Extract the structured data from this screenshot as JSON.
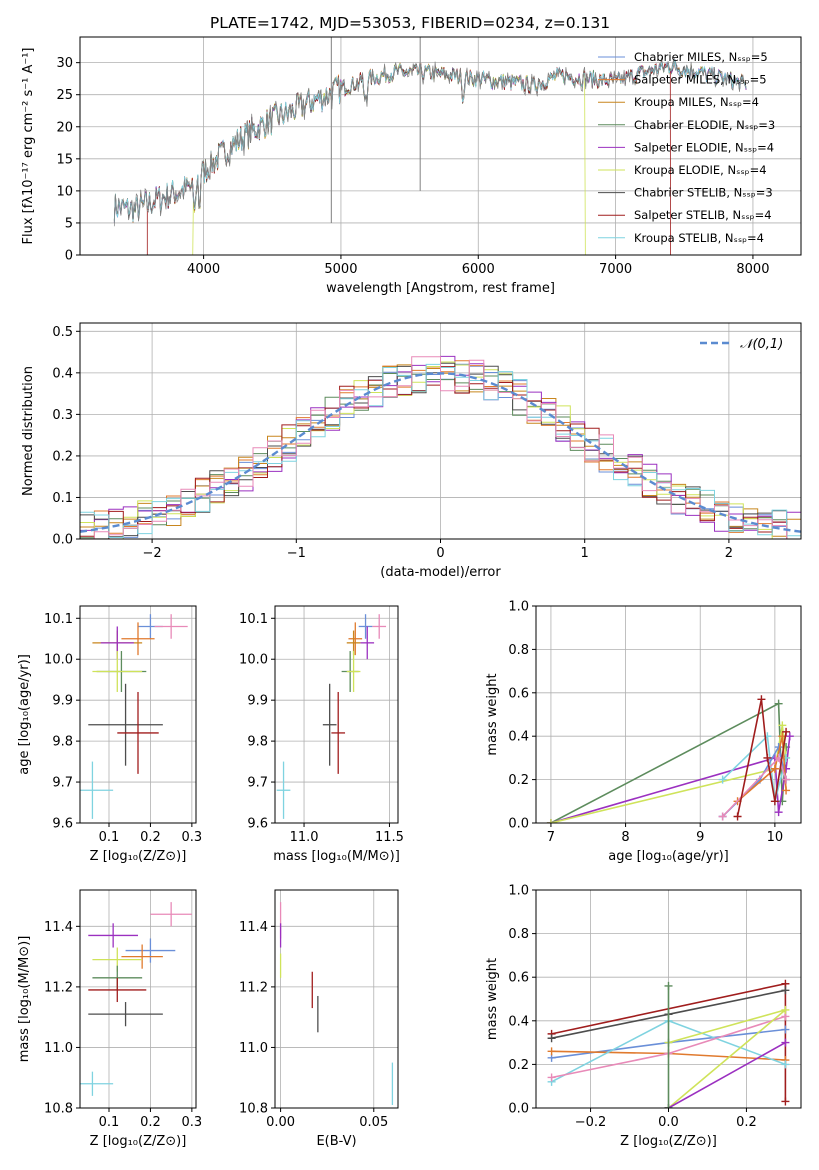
{
  "colors": {
    "Chabrier MILES": "#6a8fd8",
    "Salpeter MILES": "#e07a2e",
    "Kroupa MILES": "#c8861e",
    "Chabrier ELODIE": "#5d8c5d",
    "Salpeter ELODIE": "#9b30c0",
    "Kroupa ELODIE": "#cfe35a",
    "Chabrier STELIB": "#4d4d4d",
    "Salpeter STELIB": "#a01d1d",
    "Kroupa STELIB": "#7fd3e0",
    "pink": "#e88ab8",
    "observed": "#808080"
  },
  "chart_data": [
    {
      "id": "spectrum",
      "type": "line",
      "title": "PLATE=1742, MJD=53053, FIBERID=0234, z=0.131",
      "xlabel": "wavelength [Angstrom, rest frame]",
      "ylabel": "Flux [fλ10⁻¹⁷ erg cm⁻² s⁻¹ A⁻¹]",
      "xlim": [
        3100,
        8350
      ],
      "ylim": [
        0,
        34
      ],
      "xticks": [
        4000,
        5000,
        6000,
        7000,
        8000
      ],
      "yticks": [
        0,
        5,
        10,
        15,
        20,
        25,
        30
      ],
      "legend_position": "top-right",
      "legend": [
        "Chabrier MILES, Nₛₛₚ=5",
        "Salpeter MILES, Nₛₛₚ=5",
        "Kroupa MILES, Nₛₛₚ=4",
        "Chabrier ELODIE, Nₛₛₚ=3",
        "Salpeter ELODIE, Nₛₛₚ=4",
        "Kroupa ELODIE, Nₛₛₚ=4",
        "Chabrier STELIB, Nₛₛₚ=3",
        "Salpeter STELIB, Nₛₛₚ=4",
        "Kroupa STELIB, Nₛₛₚ=4"
      ],
      "continuum": [
        [
          3350,
          7.5
        ],
        [
          3500,
          7.0
        ],
        [
          3700,
          9.0
        ],
        [
          3900,
          10.5
        ],
        [
          4000,
          13.0
        ],
        [
          4200,
          17.0
        ],
        [
          4400,
          20.0
        ],
        [
          4600,
          22.0
        ],
        [
          4800,
          24.0
        ],
        [
          5000,
          26.0
        ],
        [
          5200,
          27.5
        ],
        [
          5400,
          28.5
        ],
        [
          5600,
          28.5
        ],
        [
          5800,
          28.0
        ],
        [
          6000,
          27.5
        ],
        [
          6200,
          27.0
        ],
        [
          6400,
          26.5
        ],
        [
          6600,
          28.0
        ],
        [
          6800,
          27.5
        ],
        [
          7000,
          27.0
        ],
        [
          7200,
          28.5
        ],
        [
          7400,
          29.5
        ],
        [
          7600,
          28.5
        ],
        [
          7800,
          27.5
        ],
        [
          7950,
          26.5
        ]
      ],
      "models_end": [
        3600,
        3920,
        6780,
        7400
      ]
    },
    {
      "id": "residuals",
      "type": "histogram",
      "xlabel": "(data-model)/error",
      "ylabel": "Normed distribution",
      "xlim": [
        -2.5,
        2.5
      ],
      "ylim": [
        0,
        0.52
      ],
      "xticks": [
        -2,
        -1,
        0,
        1,
        2
      ],
      "yticks": [
        0.0,
        0.1,
        0.2,
        0.3,
        0.4,
        0.5
      ],
      "legend_position": "top-right",
      "legend": [
        "𝒩(0,1)"
      ],
      "bin_width": 0.1
    },
    {
      "id": "age-vs-Z",
      "type": "scatter",
      "xlabel": "Z [log₁₀(Z/Z⊙)]",
      "ylabel": "age  [log₁₀(age/yr)]",
      "xlim": [
        0.03,
        0.31
      ],
      "ylim": [
        9.6,
        10.13
      ],
      "xticks": [
        0.1,
        0.2,
        0.3
      ],
      "yticks": [
        9.6,
        9.7,
        9.8,
        9.9,
        10.0,
        10.1
      ],
      "points": [
        {
          "x": 0.2,
          "y": 10.08,
          "xe": 0.03,
          "ye": 0.03,
          "c": "Chabrier MILES"
        },
        {
          "x": 0.17,
          "y": 10.05,
          "xe": 0.04,
          "ye": 0.04,
          "c": "Salpeter MILES"
        },
        {
          "x": 0.12,
          "y": 10.04,
          "xe": 0.06,
          "ye": 0.03,
          "c": "Kroupa MILES"
        },
        {
          "x": 0.13,
          "y": 9.97,
          "xe": 0.06,
          "ye": 0.05,
          "c": "Chabrier ELODIE"
        },
        {
          "x": 0.12,
          "y": 10.04,
          "xe": 0.04,
          "ye": 0.04,
          "c": "Salpeter ELODIE"
        },
        {
          "x": 0.12,
          "y": 9.97,
          "xe": 0.06,
          "ye": 0.05,
          "c": "Kroupa ELODIE"
        },
        {
          "x": 0.14,
          "y": 9.84,
          "xe": 0.09,
          "ye": 0.1,
          "c": "Chabrier STELIB"
        },
        {
          "x": 0.17,
          "y": 9.82,
          "xe": 0.05,
          "ye": 0.1,
          "c": "Salpeter STELIB"
        },
        {
          "x": 0.06,
          "y": 9.68,
          "xe": 0.05,
          "ye": 0.07,
          "c": "Kroupa STELIB"
        },
        {
          "x": 0.25,
          "y": 10.08,
          "xe": 0.04,
          "ye": 0.03,
          "c": "pink"
        }
      ]
    },
    {
      "id": "age-vs-mass",
      "type": "scatter",
      "xlabel": "mass [log₁₀(M/M⊙)]",
      "ylabel": "",
      "xlim": [
        10.83,
        11.55
      ],
      "ylim": [
        9.6,
        10.13
      ],
      "xticks": [
        11.0,
        11.5
      ],
      "yticks": [
        9.6,
        9.7,
        9.8,
        9.9,
        10.0,
        10.1
      ],
      "points": [
        {
          "x": 11.36,
          "y": 10.08,
          "xe": 0.04,
          "ye": 0.03,
          "c": "Chabrier MILES"
        },
        {
          "x": 11.3,
          "y": 10.05,
          "xe": 0.04,
          "ye": 0.04,
          "c": "Salpeter MILES"
        },
        {
          "x": 11.29,
          "y": 10.04,
          "xe": 0.04,
          "ye": 0.03,
          "c": "Kroupa MILES"
        },
        {
          "x": 11.27,
          "y": 9.97,
          "xe": 0.05,
          "ye": 0.05,
          "c": "Chabrier ELODIE"
        },
        {
          "x": 11.37,
          "y": 10.04,
          "xe": 0.04,
          "ye": 0.04,
          "c": "Salpeter ELODIE"
        },
        {
          "x": 11.29,
          "y": 9.97,
          "xe": 0.04,
          "ye": 0.05,
          "c": "Kroupa ELODIE"
        },
        {
          "x": 11.15,
          "y": 9.84,
          "xe": 0.04,
          "ye": 0.1,
          "c": "Chabrier STELIB"
        },
        {
          "x": 11.2,
          "y": 9.82,
          "xe": 0.04,
          "ye": 0.1,
          "c": "Salpeter STELIB"
        },
        {
          "x": 10.88,
          "y": 9.68,
          "xe": 0.04,
          "ye": 0.07,
          "c": "Kroupa STELIB"
        },
        {
          "x": 11.44,
          "y": 10.08,
          "xe": 0.04,
          "ye": 0.03,
          "c": "pink"
        }
      ]
    },
    {
      "id": "mass-weight-vs-age",
      "type": "line",
      "xlabel": "age  [log₁₀(age/yr)]",
      "ylabel": "mass weight",
      "xlim": [
        6.8,
        10.35
      ],
      "ylim": [
        0,
        1.0
      ],
      "xticks": [
        7,
        8,
        9,
        10
      ],
      "yticks": [
        0.0,
        0.2,
        0.4,
        0.6,
        0.8,
        1.0
      ],
      "series": [
        {
          "c": "Chabrier ELODIE",
          "pts": [
            [
              7.0,
              0.0
            ],
            [
              10.05,
              0.55
            ],
            [
              10.1,
              0.1
            ],
            [
              10.15,
              0.35
            ]
          ]
        },
        {
          "c": "Salpeter ELODIE",
          "pts": [
            [
              7.0,
              0.0
            ],
            [
              10.0,
              0.3
            ],
            [
              10.05,
              0.05
            ],
            [
              10.15,
              0.25
            ],
            [
              10.2,
              0.4
            ]
          ]
        },
        {
          "c": "Kroupa ELODIE",
          "pts": [
            [
              7.0,
              0.0
            ],
            [
              10.0,
              0.25
            ],
            [
              10.1,
              0.45
            ],
            [
              10.15,
              0.3
            ]
          ]
        },
        {
          "c": "Kroupa STELIB",
          "pts": [
            [
              9.3,
              0.2
            ],
            [
              9.9,
              0.4
            ],
            [
              10.0,
              0.1
            ],
            [
              10.15,
              0.3
            ]
          ]
        },
        {
          "c": "Chabrier MILES",
          "pts": [
            [
              9.3,
              0.03
            ],
            [
              9.8,
              0.2
            ],
            [
              10.05,
              0.35
            ],
            [
              10.15,
              0.2
            ]
          ]
        },
        {
          "c": "Salpeter MILES",
          "pts": [
            [
              9.5,
              0.1
            ],
            [
              10.0,
              0.25
            ],
            [
              10.1,
              0.4
            ],
            [
              10.15,
              0.15
            ]
          ]
        },
        {
          "c": "pink",
          "pts": [
            [
              9.3,
              0.03
            ],
            [
              10.05,
              0.3
            ],
            [
              10.15,
              0.2
            ]
          ]
        },
        {
          "c": "Salpeter STELIB",
          "pts": [
            [
              9.5,
              0.03
            ],
            [
              9.82,
              0.57
            ],
            [
              9.9,
              0.3
            ],
            [
              10.0,
              0.1
            ],
            [
              10.15,
              0.42
            ]
          ]
        }
      ]
    },
    {
      "id": "mass-vs-Z",
      "type": "scatter",
      "xlabel": "Z [log₁₀(Z/Z⊙)]",
      "ylabel": "mass [log₁₀(M/M⊙)]",
      "xlim": [
        0.03,
        0.31
      ],
      "ylim": [
        10.8,
        11.52
      ],
      "xticks": [
        0.1,
        0.2,
        0.3
      ],
      "yticks": [
        10.8,
        11.0,
        11.2,
        11.4
      ],
      "points": [
        {
          "x": 0.2,
          "y": 11.32,
          "xe": 0.06,
          "ye": 0.04,
          "c": "Chabrier MILES"
        },
        {
          "x": 0.18,
          "y": 11.3,
          "xe": 0.05,
          "ye": 0.04,
          "c": "Salpeter MILES"
        },
        {
          "x": 0.12,
          "y": 11.29,
          "xe": 0.06,
          "ye": 0.04,
          "c": "Kroupa ELODIE"
        },
        {
          "x": 0.12,
          "y": 11.23,
          "xe": 0.06,
          "ye": 0.04,
          "c": "Chabrier ELODIE"
        },
        {
          "x": 0.11,
          "y": 11.37,
          "xe": 0.06,
          "ye": 0.04,
          "c": "Salpeter ELODIE"
        },
        {
          "x": 0.12,
          "y": 11.19,
          "xe": 0.07,
          "ye": 0.04,
          "c": "Salpeter STELIB"
        },
        {
          "x": 0.14,
          "y": 11.11,
          "xe": 0.09,
          "ye": 0.04,
          "c": "Chabrier STELIB"
        },
        {
          "x": 0.06,
          "y": 10.88,
          "xe": 0.05,
          "ye": 0.04,
          "c": "Kroupa STELIB"
        },
        {
          "x": 0.25,
          "y": 11.44,
          "xe": 0.05,
          "ye": 0.04,
          "c": "pink"
        }
      ]
    },
    {
      "id": "mass-vs-ebv",
      "type": "scatter",
      "xlabel": "E(B-V)",
      "ylabel": "",
      "xlim": [
        -0.003,
        0.063
      ],
      "ylim": [
        10.8,
        11.52
      ],
      "xticks": [
        0.0,
        0.05
      ],
      "yticks": [
        10.8,
        11.0,
        11.2,
        11.4
      ],
      "points": [
        {
          "x": 0.0,
          "y": 11.42,
          "xe": 0.0,
          "ye": 0.06,
          "c": "pink"
        },
        {
          "x": 0.0,
          "y": 11.37,
          "xe": 0.0,
          "ye": 0.04,
          "c": "Salpeter ELODIE"
        },
        {
          "x": 0.0,
          "y": 11.27,
          "xe": 0.0,
          "ye": 0.04,
          "c": "Kroupa ELODIE"
        },
        {
          "x": 0.017,
          "y": 11.19,
          "xe": 0.0,
          "ye": 0.06,
          "c": "Salpeter STELIB"
        },
        {
          "x": 0.02,
          "y": 11.11,
          "xe": 0.0,
          "ye": 0.06,
          "c": "Chabrier STELIB"
        },
        {
          "x": 0.06,
          "y": 10.88,
          "xe": 0.0,
          "ye": 0.07,
          "c": "Kroupa STELIB"
        }
      ]
    },
    {
      "id": "mass-weight-vs-Z",
      "type": "line",
      "xlabel": "Z [log₁₀(Z/Z⊙)]",
      "ylabel": "mass weight",
      "xlim": [
        -0.34,
        0.34
      ],
      "ylim": [
        0,
        1.0
      ],
      "xticks": [
        -0.2,
        0.0,
        0.2
      ],
      "yticks": [
        0.0,
        0.2,
        0.4,
        0.6,
        0.8,
        1.0
      ],
      "series": [
        {
          "c": "Salpeter STELIB",
          "pts": [
            [
              -0.3,
              0.34
            ],
            [
              0.3,
              0.57
            ],
            [
              0.3,
              0.03
            ]
          ]
        },
        {
          "c": "Chabrier STELIB",
          "pts": [
            [
              -0.3,
              0.32
            ],
            [
              0.0,
              0.43
            ],
            [
              0.3,
              0.54
            ]
          ]
        },
        {
          "c": "Chabrier MILES",
          "pts": [
            [
              -0.3,
              0.23
            ],
            [
              0.0,
              0.3
            ],
            [
              0.3,
              0.36
            ]
          ]
        },
        {
          "c": "Salpeter MILES",
          "pts": [
            [
              -0.3,
              0.26
            ],
            [
              0.0,
              0.25
            ],
            [
              0.3,
              0.22
            ]
          ]
        },
        {
          "c": "Kroupa STELIB",
          "pts": [
            [
              -0.3,
              0.12
            ],
            [
              0.0,
              0.4
            ],
            [
              0.3,
              0.2
            ]
          ]
        },
        {
          "c": "pink",
          "pts": [
            [
              -0.3,
              0.14
            ],
            [
              0.0,
              0.25
            ],
            [
              0.3,
              0.42
            ]
          ]
        },
        {
          "c": "Kroupa ELODIE",
          "pts": [
            [
              0.0,
              0.0
            ],
            [
              0.3,
              0.45
            ],
            [
              0.0,
              0.3
            ]
          ]
        },
        {
          "c": "Salpeter ELODIE",
          "pts": [
            [
              0.0,
              0.0
            ],
            [
              0.3,
              0.3
            ]
          ]
        },
        {
          "c": "Chabrier ELODIE",
          "pts": [
            [
              0.0,
              0.0
            ],
            [
              0.0,
              0.56
            ]
          ]
        }
      ]
    }
  ]
}
